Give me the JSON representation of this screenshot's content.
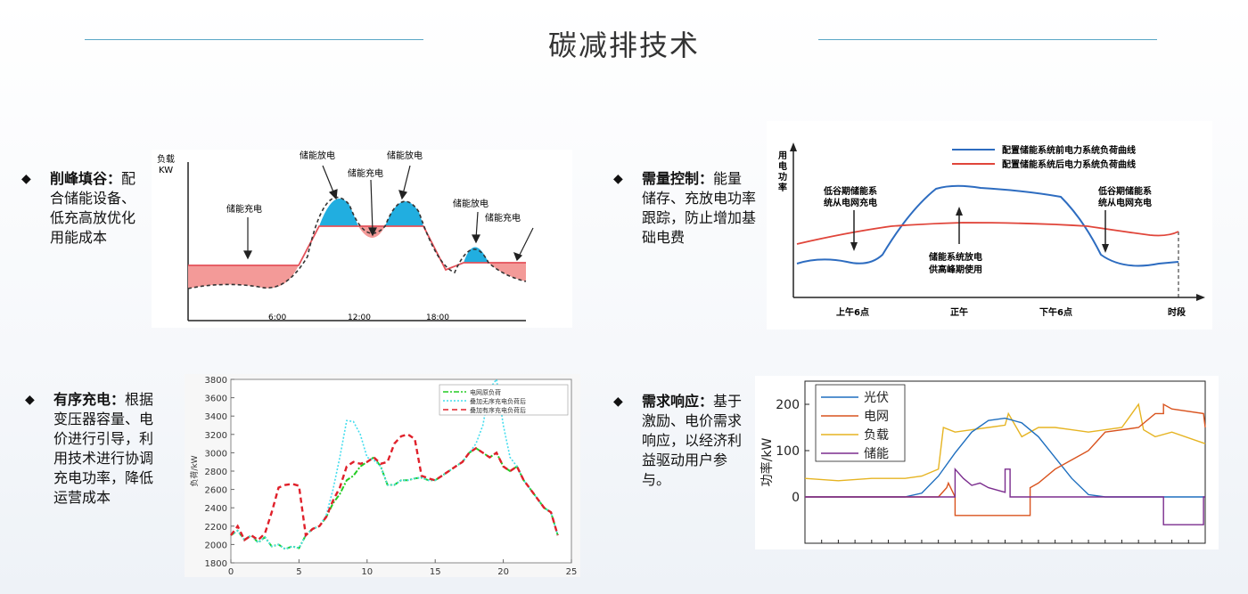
{
  "page": {
    "title": "碳减排技术"
  },
  "bullets": {
    "peak": {
      "head": "削峰填谷",
      "sep": "：",
      "text": "配合储能设备、低充高放优化用能成本"
    },
    "demand_control": {
      "head": "需量控制",
      "sep": "：",
      "text": "能量储存、充放电功率跟踪，防止增加基础电费"
    },
    "ordered_charging": {
      "head": "有序充电",
      "sep": "：",
      "text": "根据变压器容量、电价进行引导，利用技术进行协调充电功率，降低运营成本"
    },
    "demand_response": {
      "head": "需求响应",
      "sep": "：",
      "text": "基于激励、电价需求响应，以经济利益驱动用户参与。"
    }
  },
  "fig1": {
    "ylabel1": "负载",
    "ylabel2": "KW",
    "annotations": [
      "储能充电",
      "储能放电",
      "储能充电",
      "储能放电",
      "储能放电",
      "储能充电"
    ],
    "ticks": [
      "6:00",
      "12:00",
      "18:00"
    ],
    "colors": {
      "discharge": "#21aee0",
      "charge": "#f39a98",
      "flat": "#e4525a"
    }
  },
  "fig2": {
    "ylabel": [
      "用",
      "电",
      "功",
      "率"
    ],
    "legend": [
      "配置储能系统前电力系统负荷曲线",
      "配置储能系统后电力系统负荷曲线"
    ],
    "annotation_left": [
      "低谷期储能系",
      "统从电网充电"
    ],
    "annotation_mid": [
      "储能系统放电",
      "供高峰期使用"
    ],
    "annotation_right": [
      "低谷期储能系",
      "统从电网充电"
    ],
    "ticks": [
      "上午6点",
      "正午",
      "下午6点"
    ],
    "xlabel": "时段",
    "colors": {
      "before": "#2d6cc0",
      "after": "#e0453a"
    }
  },
  "chart_data": [
    {
      "type": "line",
      "id": "ordered-charging",
      "ylabel": "负荷/kW",
      "xlim": [
        0,
        25
      ],
      "ylim": [
        1800,
        3800
      ],
      "xticks": [
        0,
        5,
        10,
        15,
        20,
        25
      ],
      "yticks": [
        1800,
        2000,
        2200,
        2400,
        2600,
        2800,
        3000,
        3200,
        3400,
        3600,
        3800
      ],
      "series": [
        {
          "name": "电网原负荷",
          "color": "#22cc22",
          "x": [
            0,
            0.5,
            1,
            1.5,
            2,
            2.5,
            3,
            3.5,
            4,
            4.5,
            5,
            5.5,
            6,
            6.5,
            7,
            7.5,
            8,
            8.5,
            9,
            9.5,
            10,
            10.5,
            11,
            11.5,
            12,
            12.5,
            13,
            13.5,
            14,
            14.5,
            15,
            15.5,
            16,
            16.5,
            17,
            17.5,
            18,
            18.5,
            19,
            19.5,
            20,
            20.5,
            21,
            21.5,
            22,
            22.5,
            23,
            23.5,
            24
          ],
          "y": [
            2100,
            2150,
            2050,
            2100,
            2020,
            2080,
            1980,
            2000,
            1950,
            1980,
            1960,
            2100,
            2170,
            2200,
            2300,
            2450,
            2550,
            2700,
            2750,
            2850,
            2900,
            2950,
            2850,
            2650,
            2650,
            2700,
            2700,
            2720,
            2730,
            2700,
            2700,
            2750,
            2800,
            2850,
            2900,
            3000,
            3050,
            3000,
            2950,
            3000,
            2850,
            2800,
            2850,
            2700,
            2600,
            2500,
            2400,
            2350,
            2100
          ]
        },
        {
          "name": "叠加无序充电负荷后",
          "color": "#44ddee",
          "x": [
            0,
            0.5,
            1,
            1.5,
            2,
            2.5,
            3,
            3.5,
            4,
            4.5,
            5,
            5.5,
            6,
            6.5,
            7,
            7.5,
            8,
            8.5,
            9,
            9.5,
            10,
            10.5,
            11,
            11.5,
            12,
            12.5,
            13,
            13.5,
            14,
            14.5,
            15,
            15.5,
            16,
            16.5,
            17,
            17.5,
            18,
            18.5,
            19,
            19.5,
            20,
            20.5,
            21,
            21.5,
            22,
            22.5,
            23,
            23.5,
            24
          ],
          "y": [
            2100,
            2150,
            2050,
            2100,
            2020,
            2080,
            1980,
            2000,
            1950,
            1980,
            1960,
            2100,
            2170,
            2200,
            2320,
            2600,
            2950,
            3350,
            3340,
            3200,
            2950,
            2920,
            2850,
            2650,
            2650,
            2700,
            2700,
            2720,
            2730,
            2700,
            2700,
            2750,
            2800,
            2850,
            2900,
            3000,
            3100,
            3300,
            3700,
            3800,
            3300,
            2950,
            2850,
            2700,
            2600,
            2500,
            2400,
            2350,
            2100
          ]
        },
        {
          "name": "叠加有序充电负荷后",
          "color": "#e0202a",
          "x": [
            0,
            0.5,
            1,
            1.5,
            2,
            2.5,
            3,
            3.5,
            4,
            4.5,
            5,
            5.5,
            6,
            6.5,
            7,
            7.5,
            8,
            8.5,
            9,
            9.5,
            10,
            10.5,
            11,
            11.5,
            12,
            12.5,
            13,
            13.5,
            14,
            14.5,
            15,
            15.5,
            16,
            16.5,
            17,
            17.5,
            18,
            18.5,
            19,
            19.5,
            20,
            20.5,
            21,
            21.5,
            22,
            22.5,
            23,
            23.5,
            24
          ],
          "y": [
            2100,
            2200,
            2050,
            2100,
            2050,
            2120,
            2350,
            2620,
            2650,
            2660,
            2640,
            2100,
            2170,
            2200,
            2300,
            2480,
            2620,
            2850,
            2900,
            2880,
            2900,
            2950,
            2880,
            2900,
            3100,
            3180,
            3200,
            3150,
            2750,
            2720,
            2700,
            2750,
            2800,
            2850,
            2900,
            3000,
            3050,
            3000,
            2950,
            3000,
            2850,
            2800,
            2850,
            2700,
            2600,
            2500,
            2400,
            2350,
            2100
          ]
        }
      ]
    },
    {
      "type": "line",
      "id": "demand-response",
      "ylabel": "功率/kW",
      "xlim": [
        0,
        24
      ],
      "ylim": [
        -100,
        250
      ],
      "yticks": [
        0,
        100,
        200
      ],
      "series": [
        {
          "name": "光伏",
          "color": "#1f6fbf",
          "x": [
            0,
            6,
            7,
            8,
            9,
            10,
            11,
            12,
            13,
            14,
            15,
            16,
            17,
            18,
            24
          ],
          "y": [
            0,
            0,
            8,
            45,
            95,
            140,
            165,
            170,
            160,
            130,
            85,
            40,
            5,
            0,
            0
          ]
        },
        {
          "name": "电网",
          "color": "#d9531e",
          "x": [
            0,
            8,
            8.5,
            8.6,
            9,
            9,
            13.5,
            13.5,
            14,
            15,
            16,
            17,
            17.5,
            18,
            20,
            21,
            21.5,
            21.5,
            22,
            23.9,
            24
          ],
          "y": [
            0,
            0,
            20,
            30,
            0,
            -40,
            -40,
            20,
            30,
            60,
            80,
            100,
            120,
            140,
            150,
            180,
            180,
            200,
            190,
            180,
            150
          ]
        },
        {
          "name": "负载",
          "color": "#e6b422",
          "x": [
            0,
            2,
            4,
            6,
            7,
            8,
            8.3,
            9,
            10,
            11,
            12,
            12.2,
            13,
            14,
            15,
            16,
            17,
            18,
            19,
            20,
            20.3,
            21,
            22,
            24
          ],
          "y": [
            40,
            35,
            40,
            40,
            45,
            60,
            150,
            140,
            145,
            150,
            155,
            180,
            130,
            150,
            150,
            145,
            140,
            145,
            150,
            200,
            145,
            130,
            140,
            115
          ]
        },
        {
          "name": "储能",
          "color": "#7b2d8e",
          "x": [
            0,
            9,
            9,
            9.5,
            10,
            10.5,
            11,
            11.5,
            12,
            12,
            12.3,
            12.3,
            21.5,
            21.5,
            23.9,
            23.9,
            24
          ],
          "y": [
            0,
            0,
            60,
            40,
            25,
            30,
            20,
            15,
            10,
            60,
            60,
            0,
            0,
            -60,
            -60,
            0,
            0
          ]
        }
      ]
    }
  ]
}
